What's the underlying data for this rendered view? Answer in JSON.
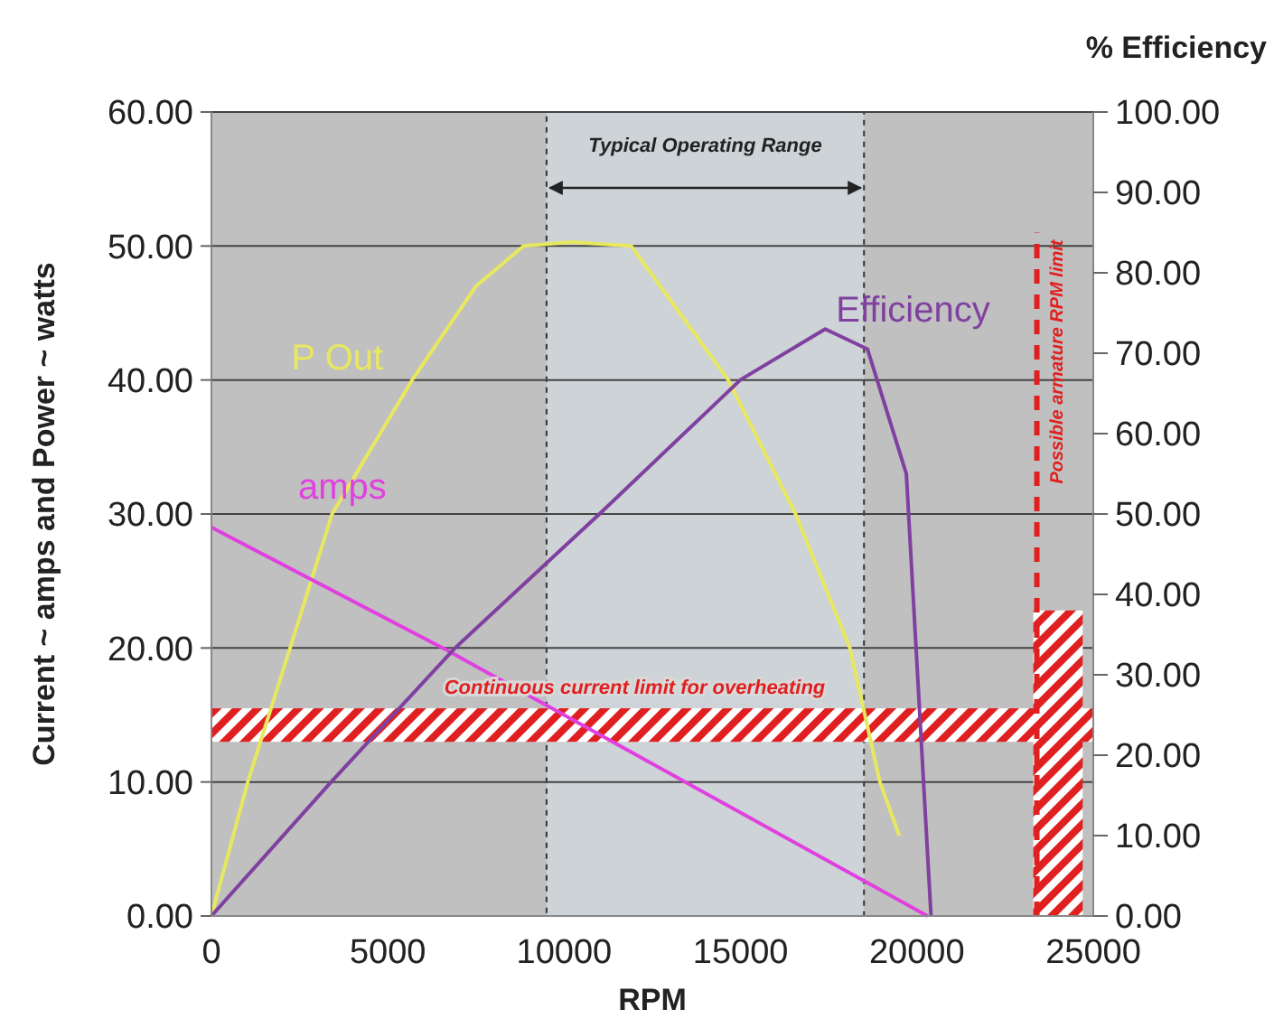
{
  "chart_data": {
    "type": "line",
    "xlabel": "RPM",
    "ylabel": "Current ~ amps and Power ~ watts",
    "y2label": "% Efficiency",
    "xlim": [
      0,
      25000
    ],
    "xticks": [
      0,
      5000,
      10000,
      15000,
      20000,
      25000
    ],
    "ylim": [
      0,
      60
    ],
    "yticks": [
      {
        "value": 0,
        "label": "0.00"
      },
      {
        "value": 10,
        "label": "10.00"
      },
      {
        "value": 20,
        "label": "20.00"
      },
      {
        "value": 30,
        "label": "30.00"
      },
      {
        "value": 40,
        "label": "40.00"
      },
      {
        "value": 50,
        "label": "50.00"
      },
      {
        "value": 60,
        "label": "60.00"
      }
    ],
    "y2lim": [
      0,
      100
    ],
    "y2ticks": [
      {
        "value": 0,
        "label": "0.00"
      },
      {
        "value": 10,
        "label": "10.00"
      },
      {
        "value": 20,
        "label": "20.00"
      },
      {
        "value": 30,
        "label": "30.00"
      },
      {
        "value": 40,
        "label": "40.00"
      },
      {
        "value": 50,
        "label": "50.00"
      },
      {
        "value": 60,
        "label": "60.00"
      },
      {
        "value": 70,
        "label": "70.00"
      },
      {
        "value": 80,
        "label": "80.00"
      },
      {
        "value": 90,
        "label": "90.00"
      },
      {
        "value": 100,
        "label": "100.00"
      }
    ],
    "grid": "y",
    "legend": false,
    "marker": "none",
    "line_style": "solid",
    "series": [
      {
        "name": "P Out",
        "color": "#e8e860",
        "x": [
          0,
          1030,
          2230,
          3420,
          5690,
          7500,
          8850,
          10200,
          11900,
          14650,
          16560,
          18100,
          18950,
          19500
        ],
        "values": [
          0,
          10,
          20,
          30,
          40,
          47,
          50,
          50.3,
          50,
          40,
          30,
          20,
          10,
          6
        ]
      },
      {
        "name": "amps",
        "color": "#e040e0",
        "x": [
          0,
          6700,
          20300
        ],
        "values": [
          29,
          19.8,
          0
        ]
      },
      {
        "name": "Efficiency",
        "color": "#8040a0",
        "axis": "y2",
        "x": [
          0,
          3400,
          6900,
          11000,
          15000,
          17400,
          18600,
          19700,
          20400
        ],
        "values": [
          0,
          16.7,
          33.3,
          50,
          66.7,
          73,
          70.5,
          55,
          0
        ]
      }
    ],
    "bands": [
      {
        "axis": "x",
        "from": 9500,
        "to": 18500,
        "label": "Typical Operating Range",
        "color": "#cdd3d6"
      },
      {
        "axis": "y",
        "from": 13,
        "to": 15.5,
        "label": "Continuous current limit for overheating",
        "color": "#e02020"
      },
      {
        "axis": "x",
        "from": 23300,
        "to": 24700,
        "color": "#e02020"
      }
    ],
    "ref_lines": [
      {
        "axis": "x",
        "value": 23400,
        "label": "Possible armature RPM limit",
        "color": "#e02020",
        "line_style": "dashed"
      }
    ]
  }
}
